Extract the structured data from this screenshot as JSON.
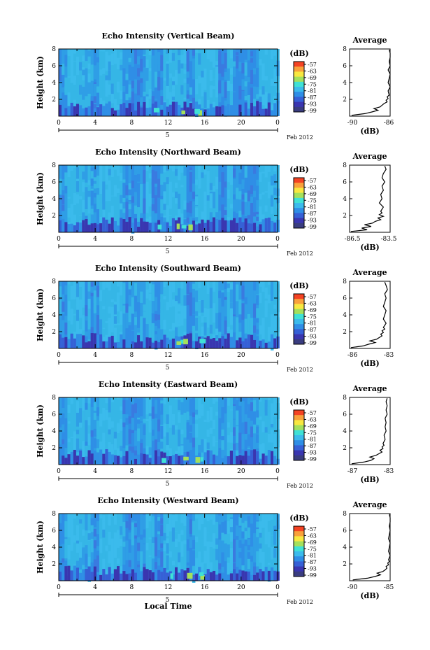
{
  "chart_data": [
    {
      "type": "heatmap",
      "title": "Echo Intensity (Vertical Beam)",
      "ylabel": "Height (km)",
      "xlim": [
        0,
        24
      ],
      "ylim": [
        0,
        8
      ],
      "x_ticks": [
        "0",
        "4",
        "8",
        "12",
        "16",
        "20",
        "0"
      ],
      "y_ticks": [
        "2",
        "4",
        "6",
        "8"
      ],
      "date_tick": "5",
      "date_label": "Feb 2012",
      "colorbar": {
        "unit": "(dB)",
        "ticks": [
          "-57",
          "-63",
          "-69",
          "-75",
          "-81",
          "-87",
          "-93",
          "-99"
        ]
      },
      "profile": {
        "title": "Average",
        "xlabel": "(dB)",
        "xlim": [
          -90,
          -86
        ],
        "x_ticks": [
          "-90",
          "-86"
        ],
        "y_ticks": [
          "2",
          "4",
          "6",
          "8"
        ],
        "height": [
          0.1,
          0.3,
          0.5,
          0.7,
          0.9,
          1.1,
          1.3,
          1.5,
          1.7,
          1.9,
          2.1,
          2.3,
          2.5,
          3,
          3.5,
          4,
          4.5,
          5,
          5.5,
          6,
          6.5,
          7,
          7.5,
          7.9
        ],
        "value": [
          -89.8,
          -88.5,
          -87.8,
          -87.2,
          -87.6,
          -87.0,
          -86.8,
          -86.6,
          -86.3,
          -86.4,
          -86.2,
          -86.3,
          -86.1,
          -86.2,
          -86.0,
          -86.2,
          -86.1,
          -86.0,
          -86.2,
          -86.0,
          -86.1,
          -85.9,
          -86.0,
          -86.1
        ]
      }
    },
    {
      "type": "heatmap",
      "title": "Echo Intensity (Northward Beam)",
      "ylabel": "Height (km)",
      "xlim": [
        0,
        24
      ],
      "ylim": [
        0,
        8
      ],
      "x_ticks": [
        "0",
        "4",
        "8",
        "12",
        "16",
        "20",
        "0"
      ],
      "y_ticks": [
        "2",
        "4",
        "6",
        "8"
      ],
      "date_tick": "5",
      "date_label": "Feb 2012",
      "colorbar": {
        "unit": "(dB)",
        "ticks": [
          "-57",
          "-63",
          "-69",
          "-75",
          "-81",
          "-87",
          "-93",
          "-99"
        ]
      },
      "profile": {
        "title": "Average",
        "xlabel": "(dB)",
        "xlim": [
          -86.5,
          -83.5
        ],
        "x_ticks": [
          "-86.5",
          "-83.5"
        ],
        "y_ticks": [
          "2",
          "4",
          "6",
          "8"
        ],
        "height": [
          0.1,
          0.3,
          0.5,
          0.7,
          0.9,
          1.1,
          1.3,
          1.5,
          1.7,
          1.9,
          2.1,
          2.3,
          2.5,
          3,
          3.5,
          4,
          4.5,
          5,
          5.5,
          6,
          6.5,
          7,
          7.5,
          7.9
        ],
        "value": [
          -86.4,
          -85.2,
          -85.6,
          -84.9,
          -85.4,
          -84.8,
          -84.6,
          -84.2,
          -84.4,
          -84.0,
          -84.3,
          -84.1,
          -84.2,
          -84.0,
          -84.3,
          -84.1,
          -84.2,
          -84.0,
          -84.1,
          -83.9,
          -84.1,
          -84.0,
          -83.8,
          -83.9
        ]
      }
    },
    {
      "type": "heatmap",
      "title": "Echo Intensity (Southward Beam)",
      "ylabel": "Height (km)",
      "xlim": [
        0,
        24
      ],
      "ylim": [
        0,
        8
      ],
      "x_ticks": [
        "0",
        "4",
        "8",
        "12",
        "16",
        "20",
        "0"
      ],
      "y_ticks": [
        "2",
        "4",
        "6",
        "8"
      ],
      "date_tick": "5",
      "date_label": "Feb 2012",
      "colorbar": {
        "unit": "(dB)",
        "ticks": [
          "-57",
          "-63",
          "-69",
          "-75",
          "-81",
          "-87",
          "-93",
          "-99"
        ]
      },
      "profile": {
        "title": "Average",
        "xlabel": "(dB)",
        "xlim": [
          -86,
          -83
        ],
        "x_ticks": [
          "-86",
          "-83"
        ],
        "y_ticks": [
          "2",
          "4",
          "6",
          "8"
        ],
        "height": [
          0.1,
          0.3,
          0.5,
          0.7,
          0.9,
          1.1,
          1.3,
          1.5,
          1.7,
          1.9,
          2.1,
          2.3,
          2.5,
          3,
          3.5,
          4,
          4.5,
          5,
          5.5,
          6,
          6.5,
          7,
          7.5,
          7.9
        ],
        "value": [
          -85.9,
          -85.0,
          -84.6,
          -84.1,
          -84.5,
          -84.0,
          -83.8,
          -83.6,
          -83.7,
          -83.5,
          -83.6,
          -83.4,
          -83.5,
          -83.3,
          -83.5,
          -83.4,
          -83.3,
          -83.5,
          -83.4,
          -83.3,
          -83.4,
          -83.2,
          -83.3,
          -83.4
        ]
      }
    },
    {
      "type": "heatmap",
      "title": "Echo Intensity (Eastward Beam)",
      "ylabel": "Height (km)",
      "xlim": [
        0,
        24
      ],
      "ylim": [
        0,
        8
      ],
      "x_ticks": [
        "0",
        "4",
        "8",
        "12",
        "16",
        "20",
        "0"
      ],
      "y_ticks": [
        "2",
        "4",
        "6",
        "8"
      ],
      "date_tick": "5",
      "date_label": "Feb 2012",
      "colorbar": {
        "unit": "(dB)",
        "ticks": [
          "-57",
          "-63",
          "-69",
          "-75",
          "-81",
          "-87",
          "-93",
          "-99"
        ]
      },
      "profile": {
        "title": "Average",
        "xlabel": "(dB)",
        "xlim": [
          -87,
          -83
        ],
        "x_ticks": [
          "-87",
          "-83"
        ],
        "y_ticks": [
          "2",
          "4",
          "6",
          "8"
        ],
        "height": [
          0.1,
          0.3,
          0.5,
          0.7,
          0.9,
          1.1,
          1.3,
          1.5,
          1.7,
          1.9,
          2.1,
          2.3,
          2.5,
          3,
          3.5,
          4,
          4.5,
          5,
          5.5,
          6,
          6.5,
          7,
          7.5,
          7.9
        ],
        "value": [
          -86.8,
          -85.6,
          -84.9,
          -84.6,
          -85.0,
          -84.4,
          -84.1,
          -83.8,
          -84.0,
          -83.7,
          -83.8,
          -83.6,
          -83.7,
          -83.5,
          -83.6,
          -83.4,
          -83.5,
          -83.4,
          -83.5,
          -83.3,
          -83.4,
          -83.3,
          -83.4,
          -83.3
        ]
      }
    },
    {
      "type": "heatmap",
      "title": "Echo Intensity (Westward Beam)",
      "ylabel": "Height (km)",
      "xlabel": "Local Time",
      "xlim": [
        0,
        24
      ],
      "ylim": [
        0,
        8
      ],
      "x_ticks": [
        "0",
        "4",
        "8",
        "12",
        "16",
        "20",
        "0"
      ],
      "y_ticks": [
        "2",
        "4",
        "6",
        "8"
      ],
      "date_tick": "5",
      "date_label": "Feb 2012",
      "colorbar": {
        "unit": "(dB)",
        "ticks": [
          "-57",
          "-63",
          "-69",
          "-75",
          "-81",
          "-87",
          "-93",
          "-99"
        ]
      },
      "profile": {
        "title": "Average",
        "xlabel": "(dB)",
        "xlim": [
          -90,
          -85
        ],
        "x_ticks": [
          "-90",
          "-85"
        ],
        "y_ticks": [
          "2",
          "4",
          "6",
          "8"
        ],
        "height": [
          0.1,
          0.3,
          0.5,
          0.7,
          0.9,
          1.1,
          1.3,
          1.5,
          1.7,
          1.9,
          2.1,
          2.3,
          2.5,
          3,
          3.5,
          4,
          4.5,
          5,
          5.5,
          6,
          6.5,
          7,
          7.5,
          7.9
        ],
        "value": [
          -89.6,
          -87.8,
          -86.9,
          -86.2,
          -86.6,
          -85.9,
          -85.6,
          -85.4,
          -85.5,
          -85.2,
          -85.3,
          -85.1,
          -85.2,
          -85.0,
          -85.2,
          -85.1,
          -85.0,
          -85.2,
          -85.1,
          -85.0,
          -85.1,
          -84.9,
          -85.0,
          -85.1
        ]
      }
    }
  ]
}
